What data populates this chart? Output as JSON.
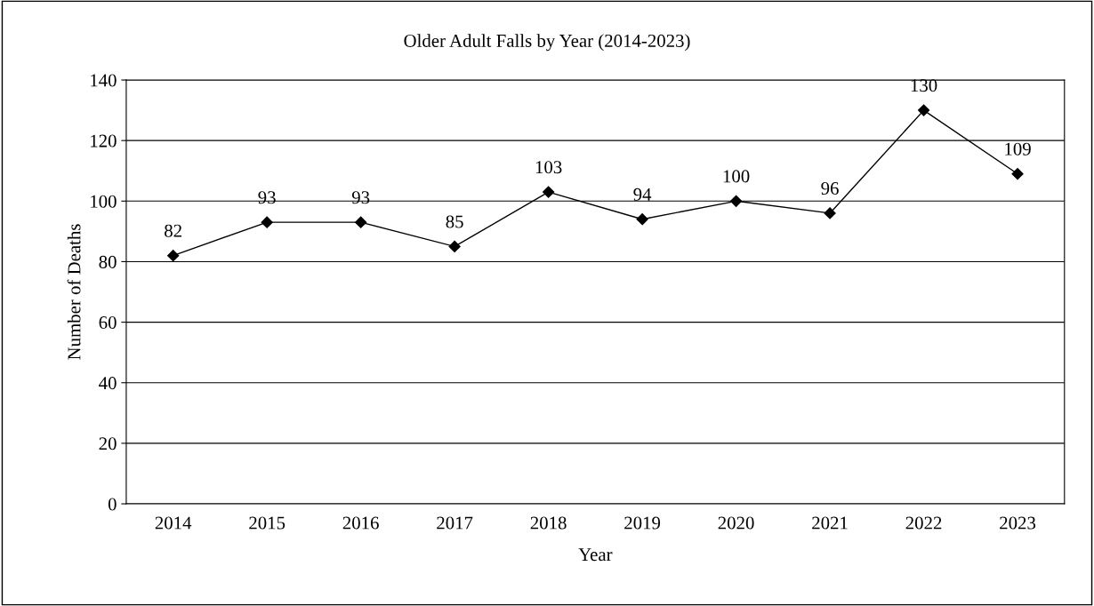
{
  "chart_data": {
    "type": "line",
    "title": "Older Adult Falls by Year (2014-2023)",
    "xlabel": "Year",
    "ylabel": "Number of Deaths",
    "categories": [
      "2014",
      "2015",
      "2016",
      "2017",
      "2018",
      "2019",
      "2020",
      "2021",
      "2022",
      "2023"
    ],
    "series": [
      {
        "color": "#000000",
        "values": [
          82,
          93,
          93,
          85,
          103,
          94,
          100,
          96,
          130,
          109
        ]
      }
    ],
    "ylim": [
      0,
      140
    ],
    "yticks": [
      0,
      20,
      40,
      60,
      80,
      100,
      120,
      140
    ],
    "grid": "y",
    "marker": "diamond",
    "line_style": "solid",
    "data_labels": true
  }
}
